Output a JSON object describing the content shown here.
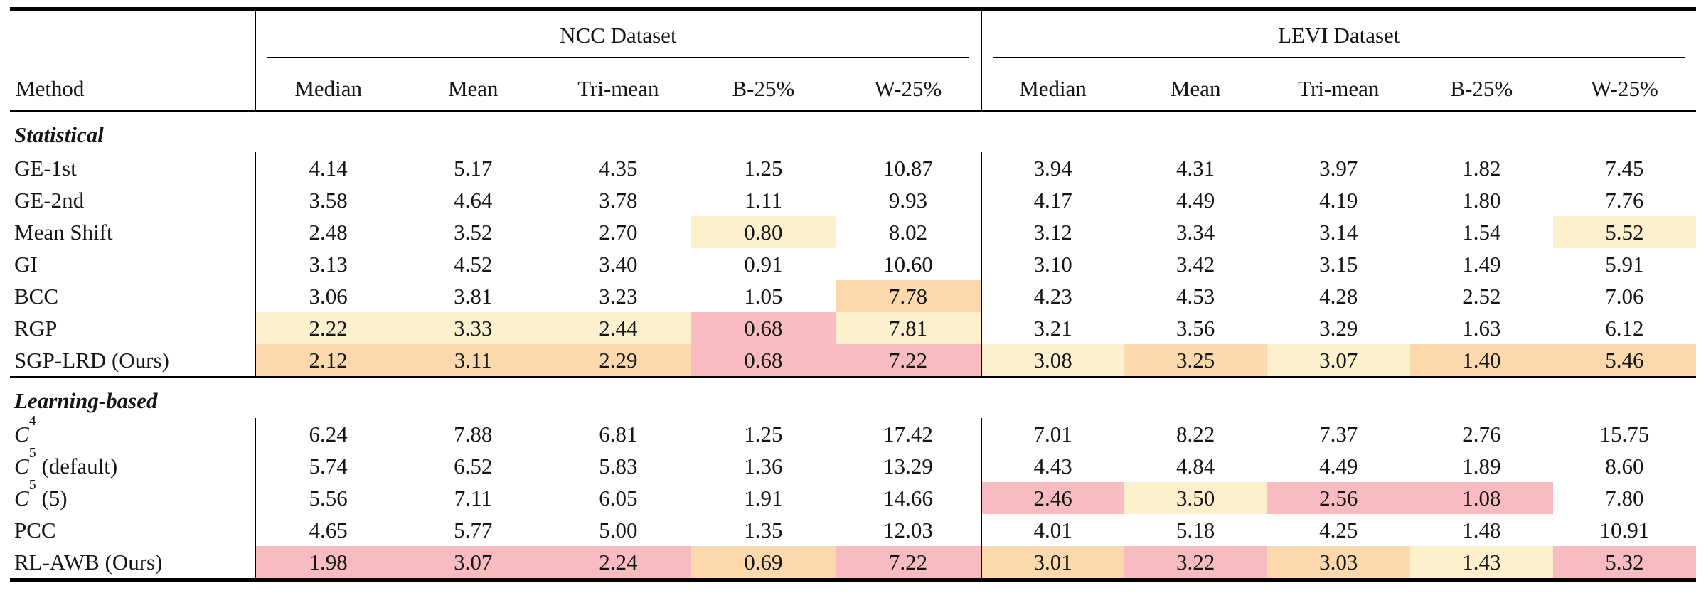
{
  "table": {
    "method_header": "Method",
    "groups": [
      {
        "title": "NCC Dataset"
      },
      {
        "title": "LEVI Dataset"
      }
    ],
    "columns": [
      "Median",
      "Mean",
      "Tri-mean",
      "B-25%",
      "W-25%"
    ],
    "highlight_colors": {
      "none": "transparent",
      "third_best_cream": "#fdf0cd",
      "second_best_peach": "#fbd9ac",
      "best_pink": "#f8bbbf"
    },
    "sections": [
      {
        "label": "Statistical",
        "rows": [
          {
            "method": {
              "text": "GE-1st"
            },
            "ncc": {
              "values": [
                "4.14",
                "5.17",
                "4.35",
                "1.25",
                "10.87"
              ],
              "hl": [
                0,
                0,
                0,
                0,
                0
              ]
            },
            "levi": {
              "values": [
                "3.94",
                "4.31",
                "3.97",
                "1.82",
                "7.45"
              ],
              "hl": [
                0,
                0,
                0,
                0,
                0
              ]
            }
          },
          {
            "method": {
              "text": "GE-2nd"
            },
            "ncc": {
              "values": [
                "3.58",
                "4.64",
                "3.78",
                "1.11",
                "9.93"
              ],
              "hl": [
                0,
                0,
                0,
                0,
                0
              ]
            },
            "levi": {
              "values": [
                "4.17",
                "4.49",
                "4.19",
                "1.80",
                "7.76"
              ],
              "hl": [
                0,
                0,
                0,
                0,
                0
              ]
            }
          },
          {
            "method": {
              "text": "Mean Shift"
            },
            "ncc": {
              "values": [
                "2.48",
                "3.52",
                "2.70",
                "0.80",
                "8.02"
              ],
              "hl": [
                0,
                0,
                0,
                1,
                0
              ]
            },
            "levi": {
              "values": [
                "3.12",
                "3.34",
                "3.14",
                "1.54",
                "5.52"
              ],
              "hl": [
                0,
                0,
                0,
                0,
                1
              ]
            }
          },
          {
            "method": {
              "text": "GI"
            },
            "ncc": {
              "values": [
                "3.13",
                "4.52",
                "3.40",
                "0.91",
                "10.60"
              ],
              "hl": [
                0,
                0,
                0,
                0,
                0
              ]
            },
            "levi": {
              "values": [
                "3.10",
                "3.42",
                "3.15",
                "1.49",
                "5.91"
              ],
              "hl": [
                0,
                0,
                0,
                0,
                0
              ]
            }
          },
          {
            "method": {
              "text": "BCC"
            },
            "ncc": {
              "values": [
                "3.06",
                "3.81",
                "3.23",
                "1.05",
                "7.78"
              ],
              "hl": [
                0,
                0,
                0,
                0,
                2
              ]
            },
            "levi": {
              "values": [
                "4.23",
                "4.53",
                "4.28",
                "2.52",
                "7.06"
              ],
              "hl": [
                0,
                0,
                0,
                0,
                0
              ]
            }
          },
          {
            "method": {
              "text": "RGP"
            },
            "ncc": {
              "values": [
                "2.22",
                "3.33",
                "2.44",
                "0.68",
                "7.81"
              ],
              "hl": [
                1,
                1,
                1,
                3,
                1
              ]
            },
            "levi": {
              "values": [
                "3.21",
                "3.56",
                "3.29",
                "1.63",
                "6.12"
              ],
              "hl": [
                0,
                0,
                0,
                0,
                0
              ]
            }
          },
          {
            "method": {
              "text": "SGP-LRD (Ours)"
            },
            "ncc": {
              "values": [
                "2.12",
                "3.11",
                "2.29",
                "0.68",
                "7.22"
              ],
              "hl": [
                2,
                2,
                2,
                3,
                3
              ]
            },
            "levi": {
              "values": [
                "3.08",
                "3.25",
                "3.07",
                "1.40",
                "5.46"
              ],
              "hl": [
                1,
                2,
                1,
                2,
                2
              ]
            }
          }
        ]
      },
      {
        "label": "Learning-based",
        "rows": [
          {
            "method": {
              "text": "C",
              "sup": "4",
              "rest": ""
            },
            "ncc": {
              "values": [
                "6.24",
                "7.88",
                "6.81",
                "1.25",
                "17.42"
              ],
              "hl": [
                0,
                0,
                0,
                0,
                0
              ]
            },
            "levi": {
              "values": [
                "7.01",
                "8.22",
                "7.37",
                "2.76",
                "15.75"
              ],
              "hl": [
                0,
                0,
                0,
                0,
                0
              ]
            }
          },
          {
            "method": {
              "text": "C",
              "sup": "5",
              "rest": " (default)"
            },
            "ncc": {
              "values": [
                "5.74",
                "6.52",
                "5.83",
                "1.36",
                "13.29"
              ],
              "hl": [
                0,
                0,
                0,
                0,
                0
              ]
            },
            "levi": {
              "values": [
                "4.43",
                "4.84",
                "4.49",
                "1.89",
                "8.60"
              ],
              "hl": [
                0,
                0,
                0,
                0,
                0
              ]
            }
          },
          {
            "method": {
              "text": "C",
              "sup": "5",
              "rest": " (5)"
            },
            "ncc": {
              "values": [
                "5.56",
                "7.11",
                "6.05",
                "1.91",
                "14.66"
              ],
              "hl": [
                0,
                0,
                0,
                0,
                0
              ]
            },
            "levi": {
              "values": [
                "2.46",
                "3.50",
                "2.56",
                "1.08",
                "7.80"
              ],
              "hl": [
                3,
                1,
                3,
                3,
                0
              ]
            }
          },
          {
            "method": {
              "text": "PCC"
            },
            "ncc": {
              "values": [
                "4.65",
                "5.77",
                "5.00",
                "1.35",
                "12.03"
              ],
              "hl": [
                0,
                0,
                0,
                0,
                0
              ]
            },
            "levi": {
              "values": [
                "4.01",
                "5.18",
                "4.25",
                "1.48",
                "10.91"
              ],
              "hl": [
                0,
                0,
                0,
                0,
                0
              ]
            }
          },
          {
            "method": {
              "text": "RL-AWB (Ours)"
            },
            "ncc": {
              "values": [
                "1.98",
                "3.07",
                "2.24",
                "0.69",
                "7.22"
              ],
              "hl": [
                3,
                3,
                3,
                2,
                3
              ]
            },
            "levi": {
              "values": [
                "3.01",
                "3.22",
                "3.03",
                "1.43",
                "5.32"
              ],
              "hl": [
                2,
                3,
                2,
                1,
                3
              ]
            }
          }
        ]
      }
    ]
  }
}
